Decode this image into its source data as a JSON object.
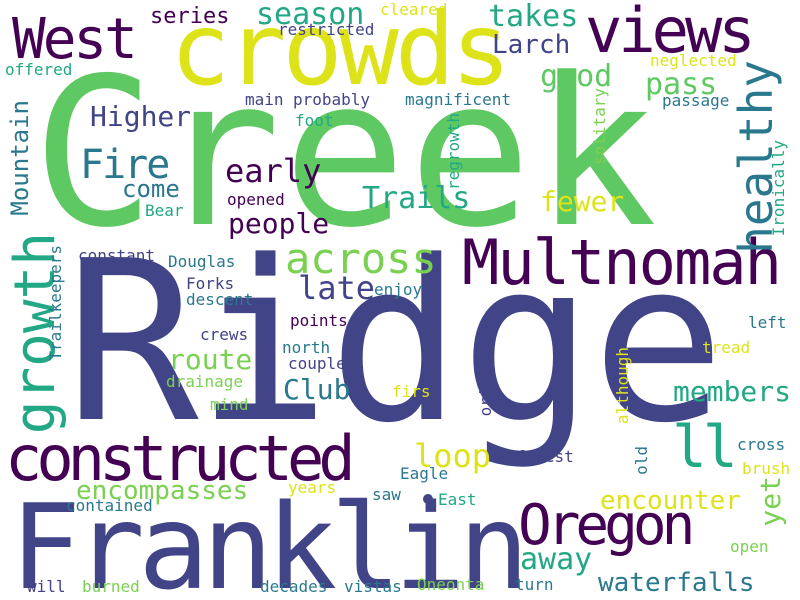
{
  "palette": {
    "background": "#ffffff",
    "dark_purple": "#440154",
    "indigo": "#414487",
    "steel_blue": "#2a788e",
    "teal": "#22a884",
    "green": "#5ec962",
    "lime": "#7ad151",
    "yellow": "#dde318"
  },
  "words": [
    "Creek",
    "Ridge",
    "Franklin",
    "crowds",
    "Multnomah",
    "constructed",
    "West",
    "views",
    "Oregon",
    "growth",
    "healthy",
    "across",
    "ll",
    "Fire",
    "season",
    "takes",
    "Larch",
    "good",
    "pass",
    "early",
    "Higher",
    "Mountain",
    "people",
    "late",
    "Trails",
    "come",
    "fewer",
    "series",
    "route",
    "loop",
    "members",
    "Club",
    "encompasses",
    "encounter",
    "yet",
    "away",
    "waterfalls",
    "regrowth",
    "Ironically",
    "originally",
    "Trailkeepers",
    "although",
    "cleared",
    "restricted",
    "offered",
    "main",
    "probably",
    "magnificent",
    "neglected",
    "passage",
    "foot",
    "solitary",
    "opened",
    "Bear",
    "constant",
    "Douglas",
    "Forks",
    "descent",
    "enjoy",
    "points",
    "left",
    "crews",
    "north",
    "couple",
    "tread",
    "drainage",
    "mind",
    "firs",
    "cross",
    "forest",
    "old",
    "Eagle",
    "brush",
    "years",
    "saw",
    "East",
    "contained",
    "open",
    "will",
    "burned",
    "decades",
    "vistas",
    "Oneonta",
    "turn"
  ]
}
